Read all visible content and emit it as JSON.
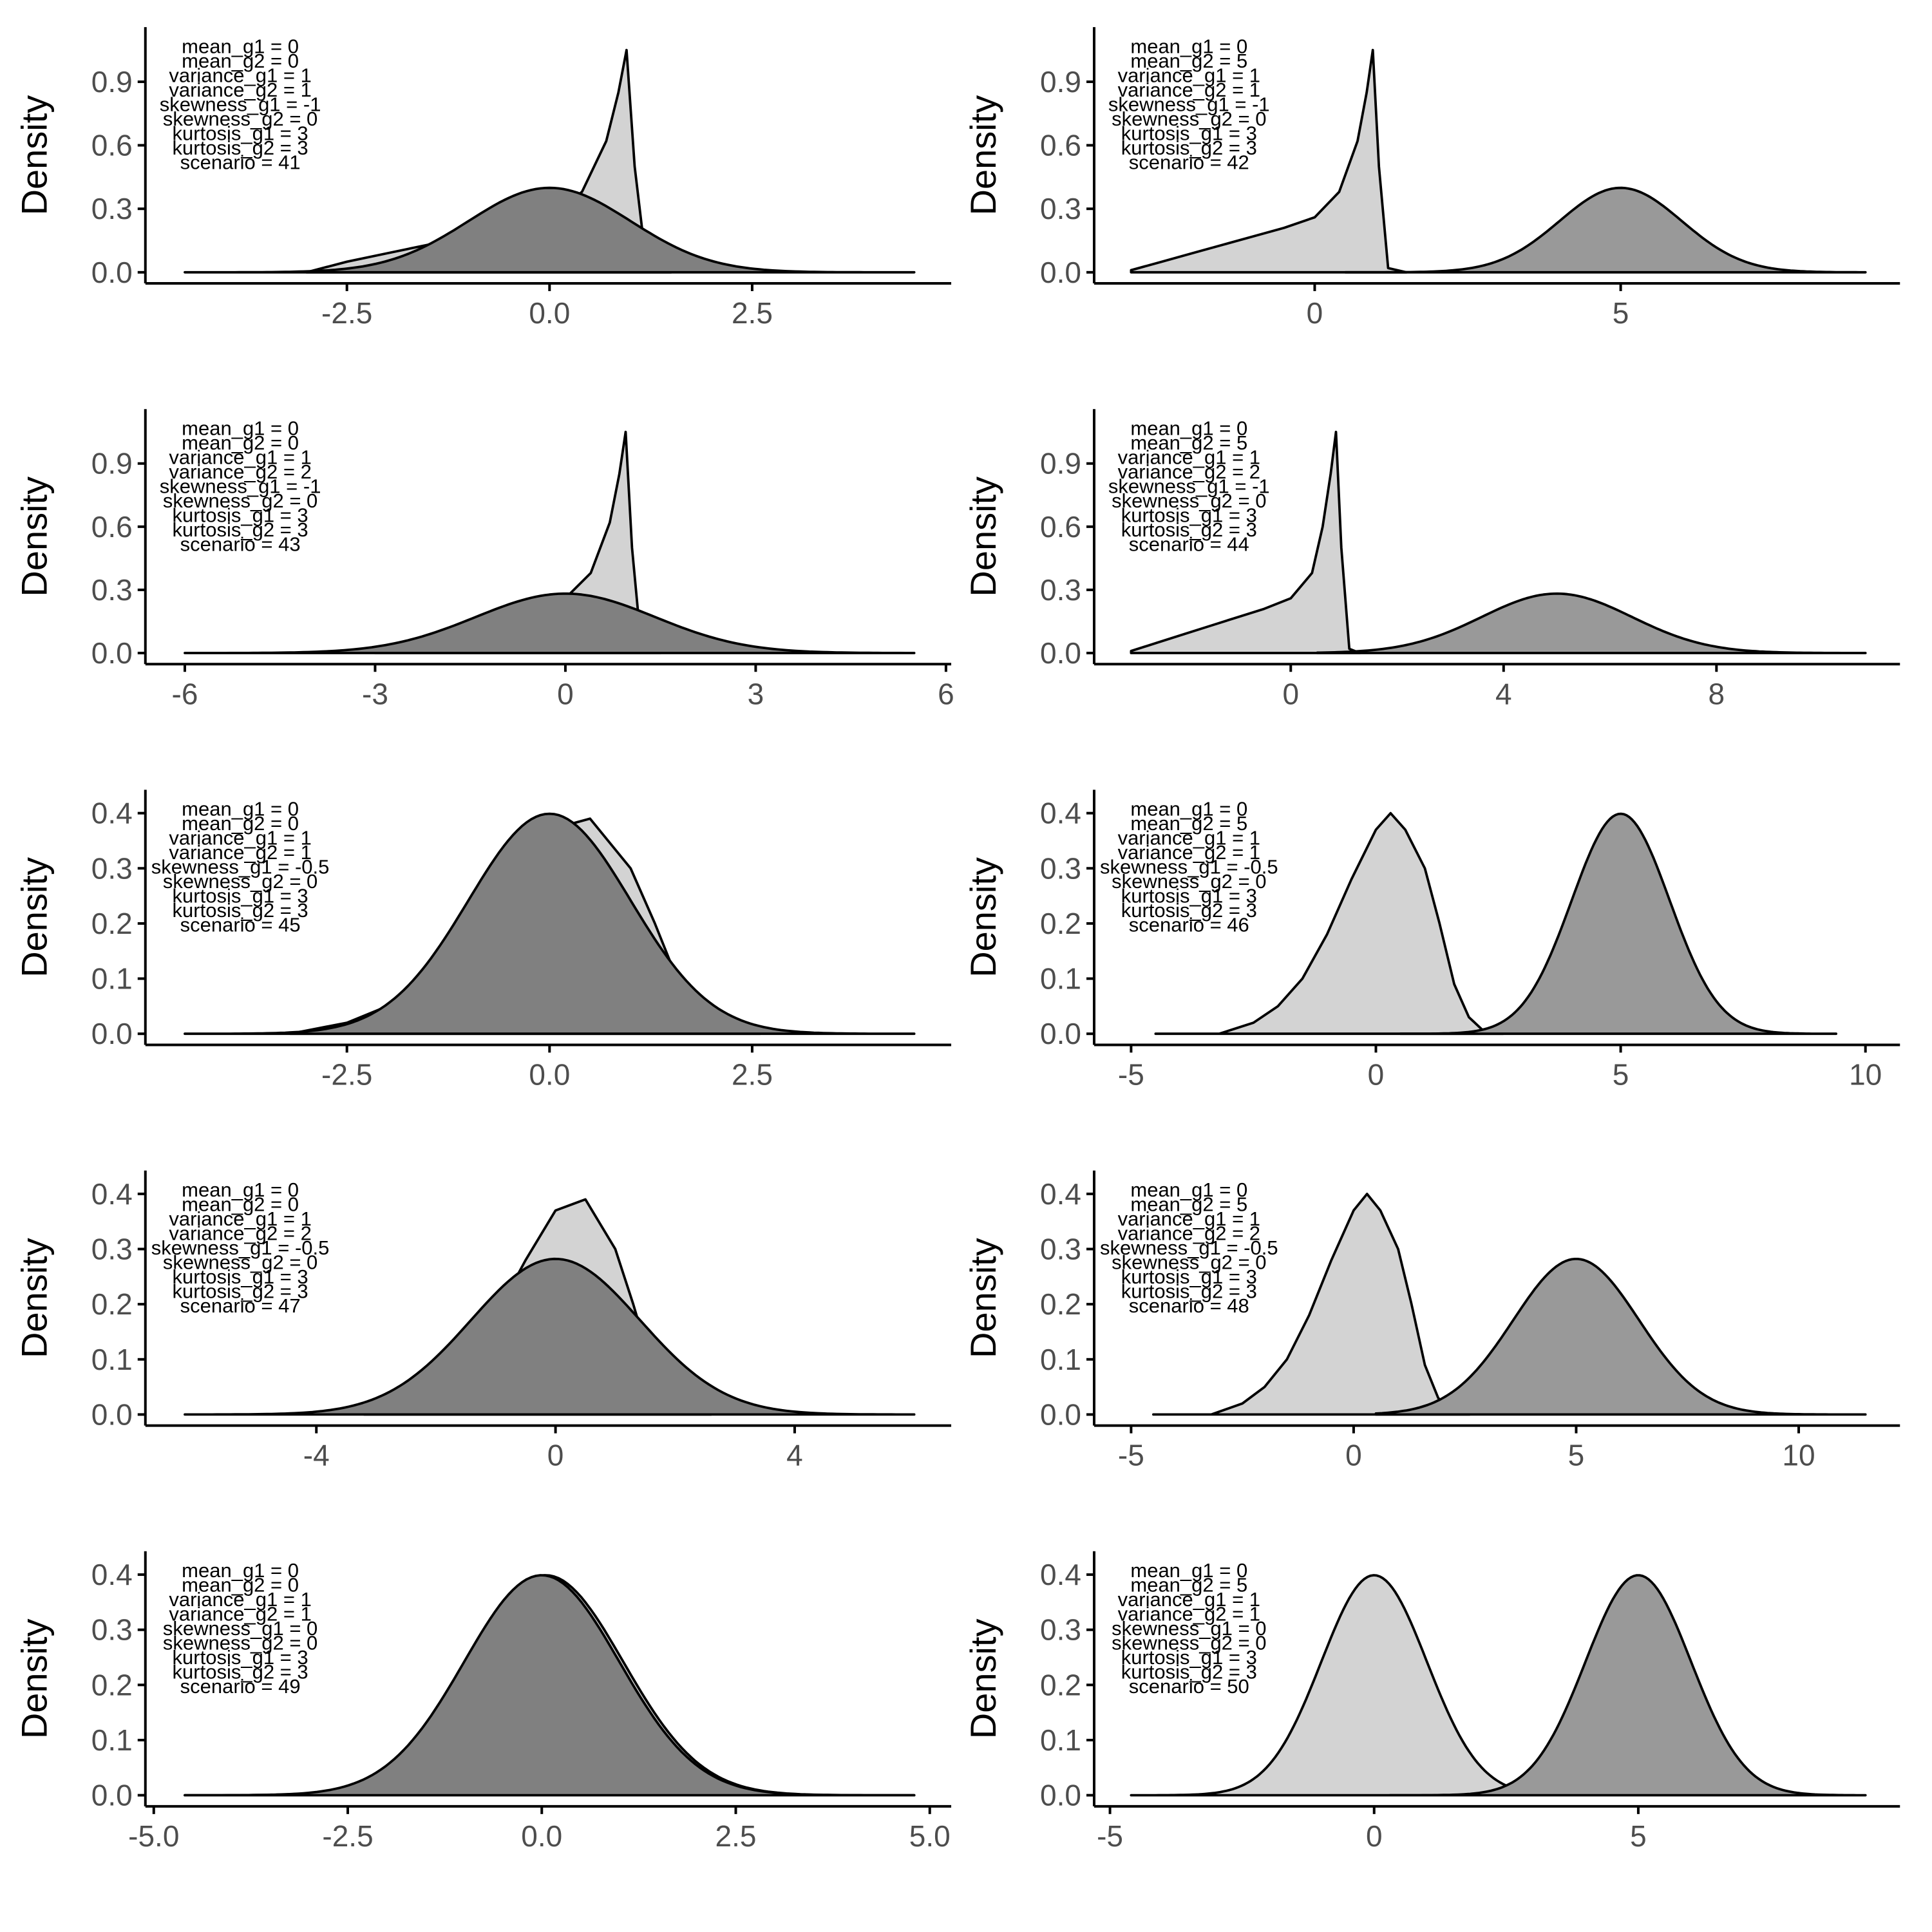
{
  "colors": {
    "g1_fill": "#d3d3d3",
    "g2_fill_same": "#808080",
    "g2_fill_shift": "#999999",
    "line": "#000000",
    "axis": "#000000",
    "tick_text": "#4d4d4d"
  },
  "chart_data": [
    {
      "type": "area",
      "scenario": 41,
      "xlabel": "",
      "ylabel": "Density",
      "xlim": [
        -4.5,
        4.5
      ],
      "ylim": [
        0,
        1.1
      ],
      "xticks": [
        -2.5,
        0.0,
        2.5
      ],
      "xtick_labels": [
        "-2.5",
        "0.0",
        "2.5"
      ],
      "yticks": [
        0,
        0.3,
        0.6,
        0.9
      ],
      "ytick_labels": [
        "0.0",
        "0.3",
        "0.6",
        "0.9"
      ],
      "annotation": [
        "mean_g1 = 0",
        "mean_g2 = 0",
        "variance_g1 = 1",
        "variance_g2 = 1",
        "skewness_g1 = -1",
        "skewness_g2 = 0",
        "kurtosis_g1 = 3",
        "kurtosis_g2 = 3",
        "scenario = 41"
      ],
      "series": [
        {
          "x": [
            -3.0,
            -2.5,
            -2.0,
            -1.5,
            -1.0,
            -0.5,
            0.0,
            0.4,
            0.7,
            0.85,
            0.95,
            1.05,
            1.2,
            1.5
          ],
          "y": [
            0.0,
            0.05,
            0.09,
            0.13,
            0.17,
            0.21,
            0.26,
            0.38,
            0.62,
            0.85,
            1.05,
            0.5,
            0.02,
            0.0
          ]
        },
        {
          "mean": 0,
          "sd": 1,
          "range": [
            -4.5,
            4.5
          ]
        }
      ]
    },
    {
      "type": "area",
      "scenario": 42,
      "xlabel": "",
      "ylabel": "Density",
      "xlim": [
        -3.0,
        9.0
      ],
      "ylim": [
        0,
        1.1
      ],
      "xticks": [
        0,
        5
      ],
      "xtick_labels": [
        "0",
        "5"
      ],
      "yticks": [
        0,
        0.3,
        0.6,
        0.9
      ],
      "ytick_labels": [
        "0.0",
        "0.3",
        "0.6",
        "0.9"
      ],
      "annotation": [
        "mean_g1 = 0",
        "mean_g2 = 5",
        "variance_g1 = 1",
        "variance_g2 = 1",
        "skewness_g1 = -1",
        "skewness_g2 = 0",
        "kurtosis_g1 = 3",
        "kurtosis_g2 = 3",
        "scenario = 42"
      ],
      "series": [
        {
          "x": [
            -3.0,
            -2.5,
            -2.0,
            -1.5,
            -1.0,
            -0.5,
            0.0,
            0.4,
            0.7,
            0.85,
            0.95,
            1.05,
            1.2,
            1.5
          ],
          "y": [
            0.01,
            0.05,
            0.09,
            0.13,
            0.17,
            0.21,
            0.26,
            0.38,
            0.62,
            0.85,
            1.05,
            0.5,
            0.02,
            0.0
          ]
        },
        {
          "mean": 5,
          "sd": 1,
          "range": [
            0.5,
            9.0
          ]
        }
      ]
    },
    {
      "type": "area",
      "scenario": 43,
      "xlabel": "",
      "ylabel": "Density",
      "xlim": [
        -6.0,
        5.5
      ],
      "ylim": [
        0,
        1.1
      ],
      "xticks": [
        -6,
        -3,
        0,
        3,
        6
      ],
      "xtick_labels": [
        "-6",
        "-3",
        "0",
        "3",
        "6"
      ],
      "yticks": [
        0,
        0.3,
        0.6,
        0.9
      ],
      "ytick_labels": [
        "0.0",
        "0.3",
        "0.6",
        "0.9"
      ],
      "annotation": [
        "mean_g1 = 0",
        "mean_g2 = 0",
        "variance_g1 = 1",
        "variance_g2 = 2",
        "skewness_g1 = -1",
        "skewness_g2 = 0",
        "kurtosis_g1 = 3",
        "kurtosis_g2 = 3",
        "scenario = 43"
      ],
      "series": [
        {
          "x": [
            -3.0,
            -2.5,
            -2.0,
            -1.5,
            -1.0,
            -0.5,
            0.0,
            0.4,
            0.7,
            0.85,
            0.95,
            1.05,
            1.2,
            1.5
          ],
          "y": [
            0.0,
            0.05,
            0.09,
            0.13,
            0.17,
            0.21,
            0.26,
            0.38,
            0.62,
            0.85,
            1.05,
            0.5,
            0.02,
            0.0
          ]
        },
        {
          "mean": 0,
          "sd": 1.414,
          "range": [
            -6.0,
            5.5
          ]
        }
      ]
    },
    {
      "type": "area",
      "scenario": 44,
      "xlabel": "",
      "ylabel": "Density",
      "xlim": [
        -3.0,
        10.8
      ],
      "ylim": [
        0,
        1.1
      ],
      "xticks": [
        0,
        4,
        8
      ],
      "xtick_labels": [
        "0",
        "4",
        "8"
      ],
      "yticks": [
        0,
        0.3,
        0.6,
        0.9
      ],
      "ytick_labels": [
        "0.0",
        "0.3",
        "0.6",
        "0.9"
      ],
      "annotation": [
        "mean_g1 = 0",
        "mean_g2 = 5",
        "variance_g1 = 1",
        "variance_g2 = 2",
        "skewness_g1 = -1",
        "skewness_g2 = 0",
        "kurtosis_g1 = 3",
        "kurtosis_g2 = 3",
        "scenario = 44"
      ],
      "series": [
        {
          "x": [
            -3.0,
            -2.5,
            -2.0,
            -1.5,
            -1.0,
            -0.5,
            0.0,
            0.4,
            0.6,
            0.75,
            0.85,
            0.95,
            1.1,
            1.3
          ],
          "y": [
            0.01,
            0.05,
            0.09,
            0.13,
            0.17,
            0.21,
            0.26,
            0.38,
            0.6,
            0.85,
            1.05,
            0.5,
            0.02,
            0.0
          ]
        },
        {
          "mean": 5,
          "sd": 1.414,
          "range": [
            0.5,
            10.8
          ]
        }
      ]
    },
    {
      "type": "area",
      "scenario": 45,
      "xlabel": "",
      "ylabel": "Density",
      "xlim": [
        -4.5,
        4.5
      ],
      "ylim": [
        0,
        0.42
      ],
      "xticks": [
        -2.5,
        0.0,
        2.5
      ],
      "xtick_labels": [
        "-2.5",
        "0.0",
        "2.5"
      ],
      "yticks": [
        0,
        0.1,
        0.2,
        0.3,
        0.4
      ],
      "ytick_labels": [
        "0.0",
        "0.1",
        "0.2",
        "0.3",
        "0.4"
      ],
      "annotation": [
        "mean_g1 = 0",
        "mean_g2 = 0",
        "variance_g1 = 1",
        "variance_g2 = 1",
        "skewness_g1 = -0.5",
        "skewness_g2 = 0",
        "kurtosis_g1 = 3",
        "kurtosis_g2 = 3",
        "scenario = 45"
      ],
      "series": [
        {
          "x": [
            -3.2,
            -2.5,
            -2.0,
            -1.5,
            -1.0,
            -0.5,
            0.0,
            0.5,
            1.0,
            1.3,
            1.6,
            1.9,
            2.2,
            2.6
          ],
          "y": [
            0.0,
            0.02,
            0.05,
            0.1,
            0.18,
            0.28,
            0.37,
            0.39,
            0.3,
            0.2,
            0.09,
            0.03,
            0.005,
            0.0
          ]
        },
        {
          "mean": 0,
          "sd": 1,
          "range": [
            -4.5,
            4.5
          ]
        }
      ]
    },
    {
      "type": "area",
      "scenario": 46,
      "xlabel": "",
      "ylabel": "Density",
      "xlim": [
        -5.0,
        10.0
      ],
      "ylim": [
        0,
        0.42
      ],
      "xticks": [
        -5,
        0,
        5,
        10
      ],
      "xtick_labels": [
        "-5",
        "0",
        "5",
        "10"
      ],
      "yticks": [
        0,
        0.1,
        0.2,
        0.3,
        0.4
      ],
      "ytick_labels": [
        "0.0",
        "0.1",
        "0.2",
        "0.3",
        "0.4"
      ],
      "annotation": [
        "mean_g1 = 0",
        "mean_g2 = 5",
        "variance_g1 = 1",
        "variance_g2 = 1",
        "skewness_g1 = -0.5",
        "skewness_g2 = 0",
        "kurtosis_g1 = 3",
        "kurtosis_g2 = 3",
        "scenario = 46"
      ],
      "series": [
        {
          "x": [
            -4.5,
            -3.2,
            -2.5,
            -2.0,
            -1.5,
            -1.0,
            -0.5,
            0.0,
            0.3,
            0.6,
            1.0,
            1.3,
            1.6,
            1.9,
            2.2,
            2.6
          ],
          "y": [
            0.0,
            0.0,
            0.02,
            0.05,
            0.1,
            0.18,
            0.28,
            0.37,
            0.4,
            0.37,
            0.3,
            0.2,
            0.09,
            0.03,
            0.005,
            0.0
          ]
        },
        {
          "mean": 5,
          "sd": 1,
          "range": [
            0.5,
            9.4
          ]
        }
      ]
    },
    {
      "type": "area",
      "scenario": 47,
      "xlabel": "",
      "ylabel": "Density",
      "xlim": [
        -6.2,
        6.0
      ],
      "ylim": [
        0,
        0.42
      ],
      "xticks": [
        -4,
        0,
        4
      ],
      "xtick_labels": [
        "-4",
        "0",
        "4"
      ],
      "yticks": [
        0,
        0.1,
        0.2,
        0.3,
        0.4
      ],
      "ytick_labels": [
        "0.0",
        "0.1",
        "0.2",
        "0.3",
        "0.4"
      ],
      "annotation": [
        "mean_g1 = 0",
        "mean_g2 = 0",
        "variance_g1 = 1",
        "variance_g2 = 2",
        "skewness_g1 = -0.5",
        "skewness_g2 = 0",
        "kurtosis_g1 = 3",
        "kurtosis_g2 = 3",
        "scenario = 47"
      ],
      "series": [
        {
          "x": [
            -3.2,
            -2.5,
            -2.0,
            -1.5,
            -1.0,
            -0.5,
            0.0,
            0.5,
            1.0,
            1.3,
            1.6,
            1.9,
            2.2,
            2.6
          ],
          "y": [
            0.0,
            0.02,
            0.05,
            0.1,
            0.18,
            0.28,
            0.37,
            0.39,
            0.3,
            0.2,
            0.09,
            0.03,
            0.005,
            0.0
          ]
        },
        {
          "mean": 0,
          "sd": 1.414,
          "range": [
            -6.2,
            6.0
          ]
        }
      ]
    },
    {
      "type": "area",
      "scenario": 48,
      "xlabel": "",
      "ylabel": "Density",
      "xlim": [
        -5.0,
        11.5
      ],
      "ylim": [
        0,
        0.42
      ],
      "xticks": [
        -5,
        0,
        5,
        10
      ],
      "xtick_labels": [
        "-5",
        "0",
        "5",
        "10"
      ],
      "yticks": [
        0,
        0.1,
        0.2,
        0.3,
        0.4
      ],
      "ytick_labels": [
        "0.0",
        "0.1",
        "0.2",
        "0.3",
        "0.4"
      ],
      "annotation": [
        "mean_g1 = 0",
        "mean_g2 = 5",
        "variance_g1 = 1",
        "variance_g2 = 2",
        "skewness_g1 = -0.5",
        "skewness_g2 = 0",
        "kurtosis_g1 = 3",
        "kurtosis_g2 = 3",
        "scenario = 48"
      ],
      "series": [
        {
          "x": [
            -4.5,
            -3.2,
            -2.5,
            -2.0,
            -1.5,
            -1.0,
            -0.5,
            0.0,
            0.3,
            0.6,
            1.0,
            1.3,
            1.6,
            1.9,
            2.2,
            2.6
          ],
          "y": [
            0.0,
            0.0,
            0.02,
            0.05,
            0.1,
            0.18,
            0.28,
            0.37,
            0.4,
            0.37,
            0.3,
            0.2,
            0.09,
            0.03,
            0.005,
            0.0
          ]
        },
        {
          "mean": 5,
          "sd": 1.414,
          "range": [
            0.5,
            11.5
          ]
        }
      ]
    },
    {
      "type": "area",
      "scenario": 49,
      "xlabel": "",
      "ylabel": "Density",
      "xlim": [
        -4.6,
        4.8
      ],
      "ylim": [
        0,
        0.42
      ],
      "xticks": [
        -5.0,
        -2.5,
        0.0,
        2.5,
        5.0
      ],
      "xtick_labels": [
        "-5.0",
        "-2.5",
        "0.0",
        "2.5",
        "5.0"
      ],
      "yticks": [
        0,
        0.1,
        0.2,
        0.3,
        0.4
      ],
      "ytick_labels": [
        "0.0",
        "0.1",
        "0.2",
        "0.3",
        "0.4"
      ],
      "annotation": [
        "mean_g1 = 0",
        "mean_g2 = 0",
        "variance_g1 = 1",
        "variance_g2 = 1",
        "skewness_g1 = 0",
        "skewness_g2 = 0",
        "kurtosis_g1 = 3",
        "kurtosis_g2 = 3",
        "scenario = 49"
      ],
      "series": [
        {
          "mean": 0.05,
          "sd": 1,
          "range": [
            -4.6,
            4.8
          ]
        },
        {
          "mean": 0,
          "sd": 1,
          "range": [
            -4.6,
            4.8
          ]
        }
      ]
    },
    {
      "type": "area",
      "scenario": 50,
      "xlabel": "",
      "ylabel": "Density",
      "xlim": [
        -4.6,
        9.3
      ],
      "ylim": [
        0,
        0.42
      ],
      "xticks": [
        -5,
        0,
        5
      ],
      "xtick_labels": [
        "-5",
        "0",
        "5"
      ],
      "yticks": [
        0,
        0.1,
        0.2,
        0.3,
        0.4
      ],
      "ytick_labels": [
        "0.0",
        "0.1",
        "0.2",
        "0.3",
        "0.4"
      ],
      "annotation": [
        "mean_g1 = 0",
        "mean_g2 = 5",
        "variance_g1 = 1",
        "variance_g2 = 1",
        "skewness_g1 = 0",
        "skewness_g2 = 0",
        "kurtosis_g1 = 3",
        "kurtosis_g2 = 3",
        "scenario = 50"
      ],
      "series": [
        {
          "mean": 0,
          "sd": 1,
          "range": [
            -4.6,
            4.7
          ]
        },
        {
          "mean": 5,
          "sd": 1,
          "range": [
            0.3,
            9.3
          ]
        }
      ]
    }
  ]
}
